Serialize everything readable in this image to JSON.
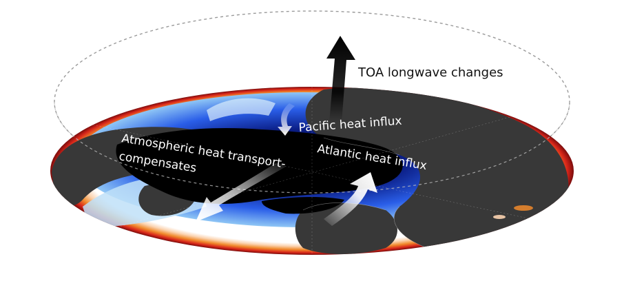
{
  "labels": {
    "toa": "TOA longwave changes",
    "pacific": "Pacific heat influx",
    "atlantic": "Atlantic heat influx",
    "atmos_line1": "Atmospheric heat transport-",
    "atmos_line2": "compensates"
  },
  "colors": {
    "background": "#ffffff",
    "land": "#383838",
    "sea_ice": "#000000",
    "ocean_dark": "#0a1a6e",
    "ocean_mid": "#2a5ee8",
    "ocean_light": "#6fb4f2",
    "rim_warm": "#d8261a",
    "rim_orange": "#f08a2c",
    "dashed_outline": "#999999",
    "arrow_black": "#000000",
    "arrow_white": "#ffffff",
    "text_dark": "#111111",
    "text_light": "#ffffff"
  },
  "icons": {
    "toa_arrow": "up-arrow-icon",
    "pacific_arrow": "curved-down-arrow-icon",
    "atlantic_arrow": "curved-up-arrow-icon",
    "atmos_arrow": "down-left-arrow-icon"
  }
}
